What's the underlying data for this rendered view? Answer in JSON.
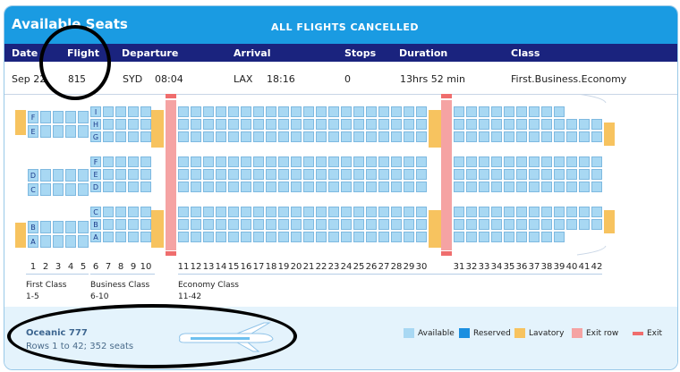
{
  "page": {
    "title": "Available Seats",
    "banner": "ALL FLIGHTS CANCELLED"
  },
  "header": {
    "date": "Date",
    "flight": "Flight",
    "departure": "Departure",
    "arrival": "Arrival",
    "stops": "Stops",
    "duration": "Duration",
    "class": "Class"
  },
  "flight": {
    "date": "Sep 22",
    "number": "815",
    "dep_airport": "SYD",
    "dep_time": "08:04",
    "arr_airport": "LAX",
    "arr_time": "18:16",
    "stops": "0",
    "duration": "13hrs 52 min",
    "classes": "First.Business.Economy"
  },
  "seatmap": {
    "first_class_letters": [
      "F",
      "E",
      "D",
      "C",
      "B",
      "A"
    ],
    "business_letters": [
      "I",
      "H",
      "G",
      "F",
      "E",
      "D",
      "C",
      "B",
      "A"
    ],
    "row_numbers": [
      "1",
      "2",
      "3",
      "4",
      "5",
      "6",
      "7",
      "8",
      "9",
      "10",
      "11",
      "12",
      "13",
      "14",
      "15",
      "16",
      "17",
      "18",
      "19",
      "20",
      "21",
      "22",
      "23",
      "24",
      "25",
      "26",
      "27",
      "28",
      "29",
      "30",
      "31",
      "32",
      "33",
      "34",
      "35",
      "36",
      "37",
      "38",
      "39",
      "40",
      "41",
      "42"
    ]
  },
  "classes": [
    {
      "name": "First Class",
      "range": "1-5"
    },
    {
      "name": "Business Class",
      "range": "6-10"
    },
    {
      "name": "Economy Class",
      "range": "11-42"
    }
  ],
  "aircraft": {
    "name": "Oceanic 777",
    "description": "Rows 1 to 42; 352 seats"
  },
  "legend": [
    {
      "label": "Available",
      "color": "#a8d8f3"
    },
    {
      "label": "Reserved",
      "color": "#1b8fe0"
    },
    {
      "label": "Lavatory",
      "color": "#f7c35f"
    },
    {
      "label": "Exit row",
      "color": "#f5a3a3"
    },
    {
      "label": "Exit",
      "color": "#ef6d6d"
    }
  ]
}
